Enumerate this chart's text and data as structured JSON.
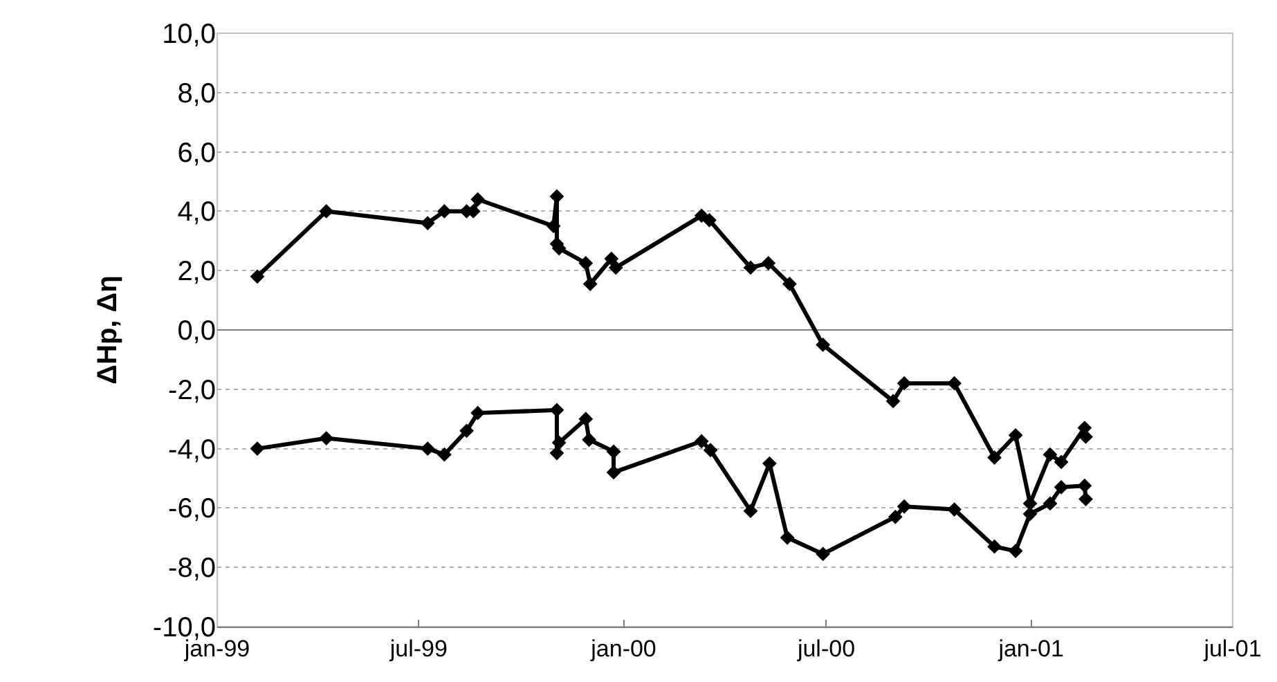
{
  "chart_data": {
    "type": "line",
    "ylabel": "ΔHp, Δη",
    "series": [
      {
        "color": "#000000",
        "x": [
          "1999-02-06",
          "1999-04-09",
          "1999-07-09",
          "1999-07-24",
          "1999-08-13",
          "1999-08-19",
          "1999-08-23",
          "1999-10-30",
          "1999-11-02",
          "1999-11-02",
          "1999-11-04",
          "1999-11-28",
          "1999-12-02",
          "1999-12-21",
          "1999-12-25",
          "2000-03-11",
          "2000-03-18",
          "2000-04-24",
          "2000-05-10",
          "2000-05-29",
          "2000-06-28",
          "2000-08-30",
          "2000-09-09",
          "2000-10-24",
          "2000-11-29",
          "2000-12-18",
          "2000-12-31",
          "2001-01-18",
          "2001-01-28",
          "2001-02-18",
          "2001-02-19"
        ],
        "values": [
          1.8,
          4.0,
          3.6,
          4.0,
          4.0,
          4.0,
          4.4,
          3.5,
          4.5,
          2.9,
          2.75,
          2.25,
          1.55,
          2.4,
          2.1,
          3.85,
          3.7,
          2.1,
          2.25,
          1.55,
          -0.5,
          -2.4,
          -1.8,
          -1.8,
          -4.3,
          -3.55,
          -5.85,
          -4.2,
          -4.45,
          -3.3,
          -3.6
        ]
      },
      {
        "color": "#000000",
        "x": [
          "1999-02-06",
          "1999-04-09",
          "1999-07-09",
          "1999-07-24",
          "1999-08-13",
          "1999-08-23",
          "1999-11-02",
          "1999-11-02",
          "1999-11-04",
          "1999-11-28",
          "1999-12-01",
          "1999-12-23",
          "1999-12-23",
          "2000-03-11",
          "2000-03-19",
          "2000-04-24",
          "2000-05-11",
          "2000-05-27",
          "2000-06-28",
          "2000-09-01",
          "2000-09-09",
          "2000-10-24",
          "2000-11-29",
          "2000-12-18",
          "2000-12-31",
          "2001-01-18",
          "2001-01-28",
          "2001-02-18",
          "2001-02-19"
        ],
        "values": [
          -4.0,
          -3.65,
          -4.0,
          -4.2,
          -3.4,
          -2.8,
          -2.7,
          -4.15,
          -3.8,
          -3.0,
          -3.7,
          -4.1,
          -4.8,
          -3.75,
          -4.05,
          -6.1,
          -4.5,
          -7.0,
          -7.55,
          -6.3,
          -5.95,
          -6.05,
          -7.3,
          -7.45,
          -6.2,
          -5.85,
          -5.3,
          -5.25,
          -5.7
        ]
      }
    ],
    "xlim": [
      "1999-01-01",
      "2001-07-01"
    ],
    "xticks": [
      {
        "value": "1999-01-01",
        "label": "jan-99"
      },
      {
        "value": "1999-07-01",
        "label": "jul-99"
      },
      {
        "value": "2000-01-01",
        "label": "jan-00"
      },
      {
        "value": "2000-07-01",
        "label": "jul-00"
      },
      {
        "value": "2001-01-01",
        "label": "jan-01"
      },
      {
        "value": "2001-07-01",
        "label": "jul-01"
      }
    ],
    "ylim": [
      -10,
      10
    ],
    "yticks": [
      {
        "value": 10,
        "label": "10,0"
      },
      {
        "value": 8,
        "label": "8,0"
      },
      {
        "value": 6,
        "label": "6,0"
      },
      {
        "value": 4,
        "label": "4,0"
      },
      {
        "value": 2,
        "label": "2,0"
      },
      {
        "value": 0,
        "label": "0,0"
      },
      {
        "value": -2,
        "label": "-2,0"
      },
      {
        "value": -4,
        "label": "-4,0"
      },
      {
        "value": -6,
        "label": "-6,0"
      },
      {
        "value": -8,
        "label": "-8,0"
      },
      {
        "value": -10,
        "label": "-10,0"
      }
    ],
    "grid": "y",
    "marker": "diamond",
    "line_style": "solid"
  }
}
